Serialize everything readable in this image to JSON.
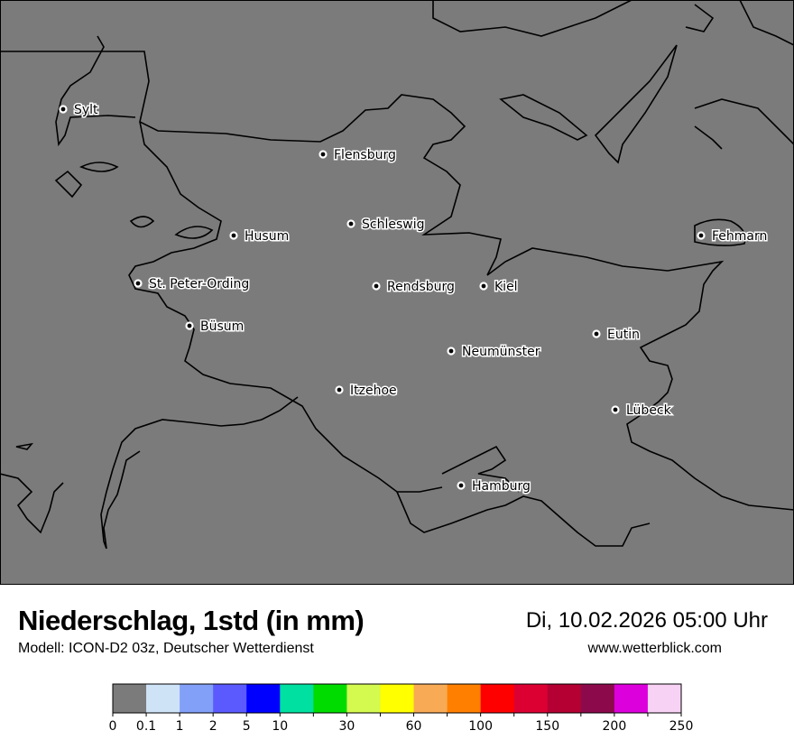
{
  "title": "Niederschlag, 1std (in mm)",
  "subtitle": "Modell: ICON-D2 03z, Deutscher Wetterdienst",
  "datetime": "Di, 10.02.2026 05:00 Uhr",
  "website": "www.wetterblick.com",
  "map_background": "#7b7b7b",
  "cities": [
    {
      "name": "Sylt"
    },
    {
      "name": "Flensburg"
    },
    {
      "name": "Schleswig"
    },
    {
      "name": "Husum"
    },
    {
      "name": "St. Peter-Ording"
    },
    {
      "name": "Rendsburg"
    },
    {
      "name": "Kiel"
    },
    {
      "name": "Fehmarn"
    },
    {
      "name": "Büsum"
    },
    {
      "name": "Eutin"
    },
    {
      "name": "Neumünster"
    },
    {
      "name": "Itzehoe"
    },
    {
      "name": "Lübeck"
    },
    {
      "name": "Hamburg"
    }
  ],
  "legend": {
    "colors": [
      "#7b7b7b",
      "#cfe3f7",
      "#82a0f8",
      "#5a5aff",
      "#0000ff",
      "#00e0a0",
      "#00dc00",
      "#d4fa50",
      "#ffff00",
      "#f8aa55",
      "#ff8000",
      "#ff0000",
      "#dc0032",
      "#b40032",
      "#8c0a4b",
      "#dc00dc",
      "#f8d2f5"
    ],
    "ticks": [
      "0",
      "0.1",
      "1",
      "2",
      "5",
      "10",
      "",
      "30",
      "",
      "60",
      "",
      "100",
      "",
      "150",
      "",
      "200",
      "",
      "250"
    ]
  }
}
